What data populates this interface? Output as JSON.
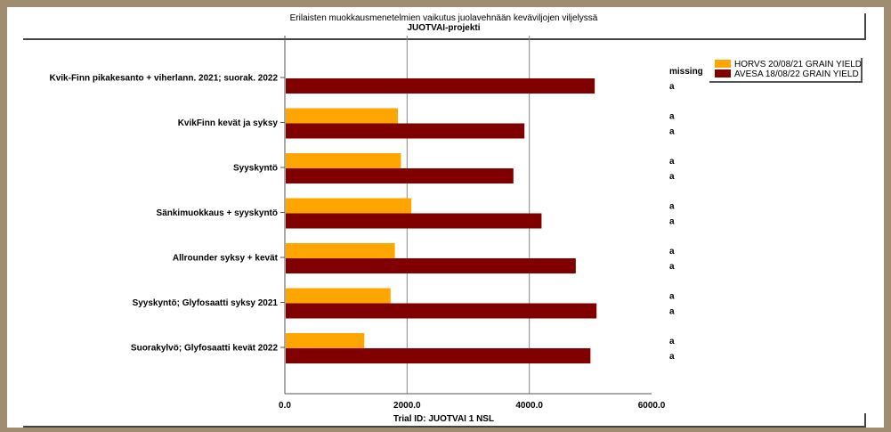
{
  "chart_data": {
    "type": "bar",
    "orientation": "horizontal",
    "title": "Erilaisten muokkausmenetelmien vaikutus juolavehnään keväviljojen viljelyssä",
    "subtitle": "JUOTVAI-projekti",
    "xlabel": "Trial ID: JUOTVAI 1 NSL",
    "xlim": [
      0,
      6000
    ],
    "xticks": [
      "0.0",
      "2000.0",
      "4000.0",
      "6000.0"
    ],
    "grid": true,
    "legend_position": "top-right",
    "categories": [
      "Kvik-Finn pikakesanto + viherlann. 2021; suorak. 2022",
      "KvikFinn kevät ja syksy",
      "Syyskyntö",
      "Sänkimuokkaus + syyskyntö",
      "Allrounder syksy + kevät",
      "Syyskyntö; Glyfosaatti syksy 2021",
      "Suorakylvö; Glyfosaatti kevät 2022"
    ],
    "series": [
      {
        "name": "HORVS 20/08/21 GRAIN YIELD",
        "color": "#ffa500",
        "values": [
          null,
          1850,
          1900,
          2070,
          1800,
          1730,
          1300
        ],
        "annotations": [
          "missing",
          "a",
          "a",
          "a",
          "a",
          "a",
          "a"
        ]
      },
      {
        "name": "AVESA 18/08/22 GRAIN YIELD",
        "color": "#800000",
        "values": [
          5070,
          3920,
          3740,
          4200,
          4760,
          5100,
          5000
        ],
        "annotations": [
          "a",
          "a",
          "a",
          "a",
          "a",
          "a",
          "a"
        ]
      }
    ]
  }
}
